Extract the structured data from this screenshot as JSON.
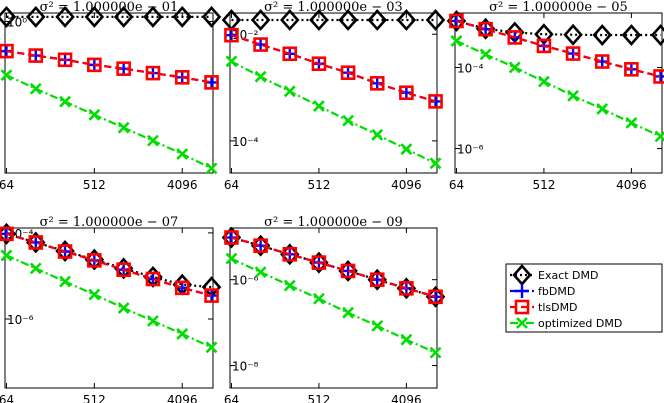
{
  "chart_data": [
    {
      "type": "line",
      "title": "σ² = 1.000000e − 01",
      "x": [
        64,
        128,
        256,
        512,
        1024,
        2048,
        4096,
        8192
      ],
      "xticks": [
        "64",
        "512",
        "4096"
      ],
      "ylog": true,
      "ylim": [
        0.0025,
        1.4
      ],
      "yticks": [
        {
          "value": 1,
          "label": "10⁰"
        }
      ],
      "series": [
        {
          "name": "Exact DMD",
          "values": [
            1.2,
            1.2,
            1.2,
            1.2,
            1.2,
            1.2,
            1.2,
            1.2
          ]
        },
        {
          "name": "fbDMD",
          "values": [
            0.31,
            0.26,
            0.22,
            0.18,
            0.155,
            0.13,
            0.11,
            0.09
          ]
        },
        {
          "name": "tlsDMD",
          "values": [
            0.31,
            0.26,
            0.22,
            0.18,
            0.155,
            0.13,
            0.11,
            0.09
          ]
        },
        {
          "name": "optimized DMD",
          "values": [
            0.12,
            0.07,
            0.042,
            0.025,
            0.015,
            0.009,
            0.0053,
            0.003
          ]
        }
      ]
    },
    {
      "type": "line",
      "title": "σ² = 1.000000e − 03",
      "x": [
        64,
        128,
        256,
        512,
        1024,
        2048,
        4096,
        8192
      ],
      "xticks": [
        "64",
        "512",
        "4096"
      ],
      "ylog": true,
      "ylim": [
        2.5e-05,
        0.025
      ],
      "yticks": [
        {
          "value": 0.01,
          "label": "10⁻²"
        },
        {
          "value": 0.0001,
          "label": "10⁻⁴"
        }
      ],
      "series": [
        {
          "name": "Exact DMD",
          "values": [
            0.0185,
            0.0185,
            0.0185,
            0.0185,
            0.0185,
            0.0185,
            0.0185,
            0.0185
          ]
        },
        {
          "name": "fbDMD",
          "values": [
            0.0096,
            0.0064,
            0.0043,
            0.0028,
            0.0019,
            0.0012,
            0.0008,
            0.00055
          ]
        },
        {
          "name": "tlsDMD",
          "values": [
            0.0096,
            0.0064,
            0.0043,
            0.0028,
            0.0019,
            0.0012,
            0.0008,
            0.00055
          ]
        },
        {
          "name": "optimized DMD",
          "values": [
            0.0031,
            0.0016,
            0.00085,
            0.00045,
            0.00024,
            0.00013,
            7e-05,
            3.8e-05
          ]
        }
      ]
    },
    {
      "type": "line",
      "title": "σ² = 1.000000e − 05",
      "x": [
        64,
        128,
        256,
        512,
        1024,
        2048,
        4096,
        8192
      ],
      "xticks": [
        "64",
        "512",
        "4096"
      ],
      "ylog": true,
      "ylim": [
        2.5e-07,
        0.0022
      ],
      "yticks": [
        {
          "value": 0.0001,
          "label": "10⁻⁴"
        },
        {
          "value": 1e-06,
          "label": "10⁻⁶"
        }
      ],
      "series": [
        {
          "name": "Exact DMD",
          "values": [
            0.0014,
            0.0009,
            0.00073,
            0.00066,
            0.00064,
            0.00063,
            0.00063,
            0.00063
          ]
        },
        {
          "name": "fbDMD",
          "values": [
            0.0014,
            0.00088,
            0.00055,
            0.00034,
            0.00022,
            0.00014,
            9e-05,
            6e-05
          ]
        },
        {
          "name": "tlsDMD",
          "values": [
            0.0014,
            0.00088,
            0.00055,
            0.00034,
            0.00022,
            0.00014,
            9e-05,
            6e-05
          ]
        },
        {
          "name": "optimized DMD",
          "values": [
            0.00045,
            0.00021,
            0.0001,
            4.5e-05,
            2e-05,
            9.5e-06,
            4.3e-06,
            2e-06
          ]
        }
      ]
    },
    {
      "type": "line",
      "title": "σ² = 1.000000e − 07",
      "x": [
        64,
        128,
        256,
        512,
        1024,
        2048,
        4096,
        8192
      ],
      "xticks": [
        "64",
        "512",
        "4096"
      ],
      "ylog": true,
      "ylim": [
        2.5e-08,
        0.00013
      ],
      "yticks": [
        {
          "value": 0.0001,
          "label": "10⁻⁴"
        },
        {
          "value": 1e-06,
          "label": "10⁻⁶"
        }
      ],
      "series": [
        {
          "name": "Exact DMD",
          "values": [
            9.5e-05,
            6e-05,
            3.8e-05,
            2.4e-05,
            1.5e-05,
            9.5e-06,
            6.3e-06,
            5.5e-06
          ]
        },
        {
          "name": "fbDMD",
          "values": [
            9.5e-05,
            6e-05,
            3.7e-05,
            2.3e-05,
            1.4e-05,
            8.5e-06,
            5.3e-06,
            3.5e-06
          ]
        },
        {
          "name": "tlsDMD",
          "values": [
            9.5e-05,
            6e-05,
            3.7e-05,
            2.3e-05,
            1.4e-05,
            8.5e-06,
            5.3e-06,
            3.5e-06
          ]
        },
        {
          "name": "optimized DMD",
          "values": [
            3e-05,
            1.5e-05,
            7.4e-06,
            3.7e-06,
            1.8e-06,
            9e-07,
            4.5e-07,
            2.2e-07
          ]
        }
      ]
    },
    {
      "type": "line",
      "title": "σ² = 1.000000e − 09",
      "x": [
        64,
        128,
        256,
        512,
        1024,
        2048,
        4096,
        8192
      ],
      "xticks": [
        "64",
        "512",
        "4096"
      ],
      "ylog": true,
      "ylim": [
        3e-09,
        1.6e-05
      ],
      "yticks": [
        {
          "value": 1e-06,
          "label": "10⁻⁶"
        },
        {
          "value": 1e-08,
          "label": "10⁻⁸"
        }
      ],
      "series": [
        {
          "name": "Exact DMD",
          "values": [
            9.6e-06,
            6.2e-06,
            3.9e-06,
            2.5e-06,
            1.6e-06,
            1e-06,
            6.3e-07,
            4e-07
          ]
        },
        {
          "name": "fbDMD",
          "values": [
            9.6e-06,
            6.2e-06,
            3.9e-06,
            2.5e-06,
            1.6e-06,
            1e-06,
            6.3e-07,
            4e-07
          ]
        },
        {
          "name": "tlsDMD",
          "values": [
            9.6e-06,
            6.2e-06,
            3.9e-06,
            2.5e-06,
            1.6e-06,
            1e-06,
            6.3e-07,
            4e-07
          ]
        },
        {
          "name": "optimized DMD",
          "values": [
            3.1e-06,
            1.5e-06,
            7.3e-07,
            3.6e-07,
            1.7e-07,
            8.4e-08,
            4e-08,
            2e-08
          ]
        }
      ]
    }
  ],
  "legend": {
    "position": "bottom-right",
    "entries": [
      {
        "label": "Exact DMD",
        "color": "#000000",
        "marker": "diamond",
        "dash": "dot"
      },
      {
        "label": "fbDMD",
        "color": "#0000ff",
        "marker": "plus",
        "dash": "dash"
      },
      {
        "label": "tlsDMD",
        "color": "#ff0000",
        "marker": "square",
        "dash": "dash"
      },
      {
        "label": "optimized DMD",
        "color": "#00dd00",
        "marker": "x",
        "dash": "dashdot"
      }
    ]
  }
}
